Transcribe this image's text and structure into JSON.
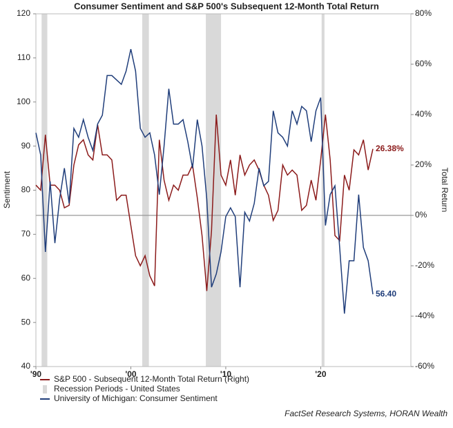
{
  "chart_data": {
    "type": "line",
    "title": "Consumer Sentiment and S&P 500's Subsequent 12-Month Total Return",
    "ylabel": "Sentiment",
    "y2label": "Total Return",
    "source": "FactSet Research Systems, HORAN Wealth",
    "x": [
      1990.0,
      1990.5,
      1991.0,
      1991.5,
      1992.0,
      1992.5,
      1993.0,
      1993.5,
      1994.0,
      1994.5,
      1995.0,
      1995.5,
      1996.0,
      1996.5,
      1997.0,
      1997.5,
      1998.0,
      1998.5,
      1999.0,
      1999.5,
      2000.0,
      2000.5,
      2001.0,
      2001.5,
      2002.0,
      2002.5,
      2003.0,
      2003.5,
      2004.0,
      2004.5,
      2005.0,
      2005.5,
      2006.0,
      2006.5,
      2007.0,
      2007.5,
      2008.0,
      2008.5,
      2009.0,
      2009.5,
      2010.0,
      2010.5,
      2011.0,
      2011.5,
      2012.0,
      2012.5,
      2013.0,
      2013.5,
      2014.0,
      2014.5,
      2015.0,
      2015.5,
      2016.0,
      2016.5,
      2017.0,
      2017.5,
      2018.0,
      2018.5,
      2019.0,
      2019.5,
      2020.0,
      2020.5,
      2021.0,
      2021.5,
      2022.0,
      2022.5,
      2023.0,
      2023.5,
      2024.0,
      2024.5,
      2025.0,
      2025.5
    ],
    "xlim": [
      1990,
      2029.5
    ],
    "xticks": [
      {
        "value": 1990,
        "label": "'90"
      },
      {
        "value": 2000,
        "label": "'00"
      },
      {
        "value": 2010,
        "label": "'10"
      },
      {
        "value": 2020,
        "label": "'20"
      }
    ],
    "ylim": [
      40,
      120
    ],
    "yticks": [
      40,
      50,
      60,
      70,
      80,
      90,
      100,
      110,
      120
    ],
    "y2lim": [
      -60,
      80
    ],
    "y2ticks": [
      {
        "value": -60,
        "label": "-60%"
      },
      {
        "value": -40,
        "label": "-40%"
      },
      {
        "value": -20,
        "label": "-20%"
      },
      {
        "value": 0,
        "label": "0%"
      },
      {
        "value": 20,
        "label": "20%"
      },
      {
        "value": 40,
        "label": "40%"
      },
      {
        "value": 60,
        "label": "60%"
      },
      {
        "value": 80,
        "label": "80%"
      }
    ],
    "y2_zero_line": true,
    "series": [
      {
        "name": "S&P 500 - Subsequent 12-Month Total Return (Right)",
        "color": "#8b1a1a",
        "axis": "y2",
        "last_label": "26.38%",
        "values": [
          12,
          10,
          32,
          12,
          12,
          10,
          3,
          4,
          20,
          28,
          30,
          24,
          22,
          36,
          24,
          24,
          22,
          6,
          8,
          8,
          -4,
          -16,
          -20,
          -16,
          -24,
          -28,
          30,
          14,
          6,
          12,
          10,
          16,
          16,
          20,
          7,
          -8,
          -30,
          -6,
          40,
          16,
          12,
          22,
          8,
          24,
          16,
          20,
          22,
          18,
          12,
          8,
          -2,
          2,
          20,
          16,
          18,
          16,
          2,
          4,
          14,
          6,
          22,
          40,
          22,
          -8,
          -10,
          16,
          10,
          26,
          24,
          30,
          18,
          26.38
        ]
      },
      {
        "name": "University of Michigan: Consumer Sentiment",
        "color": "#1f3d7a",
        "last_label": "56.40",
        "values": [
          93,
          88,
          66,
          82,
          68,
          78,
          85,
          77,
          94,
          92,
          96,
          92,
          89,
          95,
          97,
          106,
          106,
          105,
          104,
          107,
          112,
          107,
          94,
          92,
          93,
          88,
          79,
          90,
          103,
          95,
          95,
          96,
          91,
          85,
          96,
          90,
          78,
          58,
          61,
          66,
          74,
          76,
          74,
          58,
          75,
          73,
          77,
          85,
          81,
          82,
          98,
          93,
          92,
          90,
          98,
          95,
          99,
          98,
          91,
          98,
          101,
          72,
          79,
          81,
          67,
          52,
          64,
          64,
          79,
          67,
          64,
          56.4
        ]
      }
    ],
    "recessions": {
      "name": "Recession Periods - United States",
      "color": "#d9d9d9",
      "periods": [
        [
          1990.6,
          1991.2
        ],
        [
          2001.2,
          2001.9
        ],
        [
          2007.9,
          2009.5
        ],
        [
          2020.1,
          2020.4
        ]
      ]
    }
  }
}
